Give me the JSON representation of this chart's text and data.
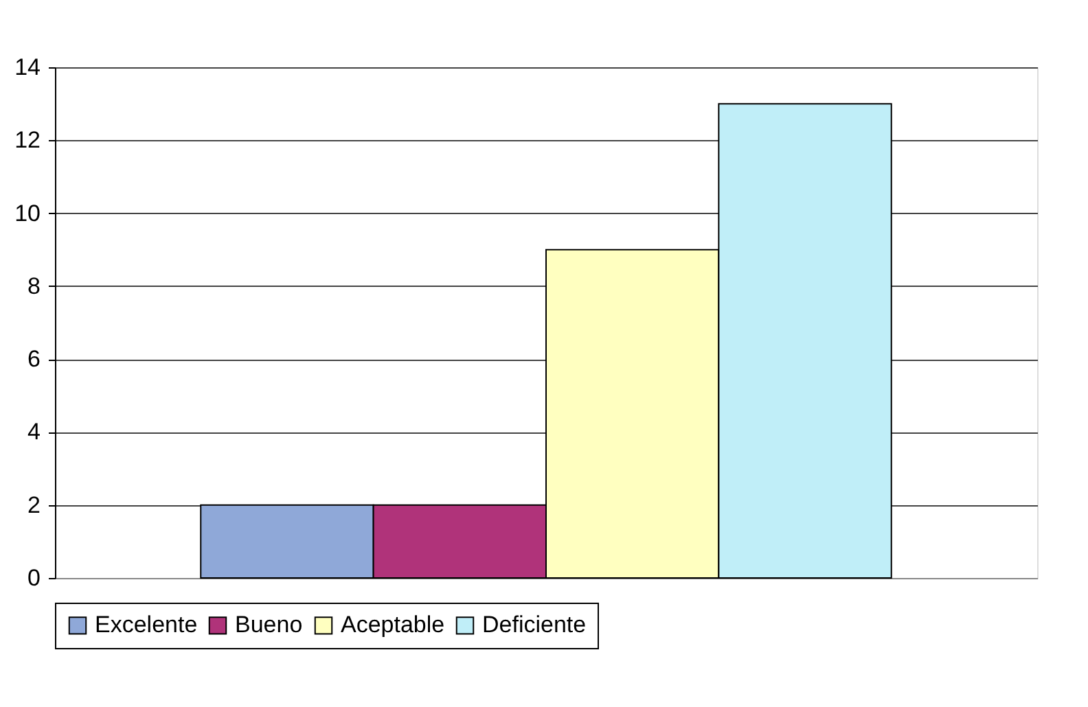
{
  "chart_data": {
    "type": "bar",
    "categories": [
      null
    ],
    "series": [
      {
        "name": "Excelente",
        "color": "#8fa8d8",
        "values": [
          2
        ]
      },
      {
        "name": "Bueno",
        "color": "#b0337a",
        "values": [
          2
        ]
      },
      {
        "name": "Aceptable",
        "color": "#ffffc0",
        "values": [
          9
        ]
      },
      {
        "name": "Deficiente",
        "color": "#c0eef8",
        "values": [
          13
        ]
      }
    ],
    "ylim": [
      0,
      14
    ],
    "yticks": [
      0,
      2,
      4,
      6,
      8,
      10,
      12,
      14
    ],
    "grid": "y",
    "legend": "bottom",
    "tick_labels": "y"
  }
}
